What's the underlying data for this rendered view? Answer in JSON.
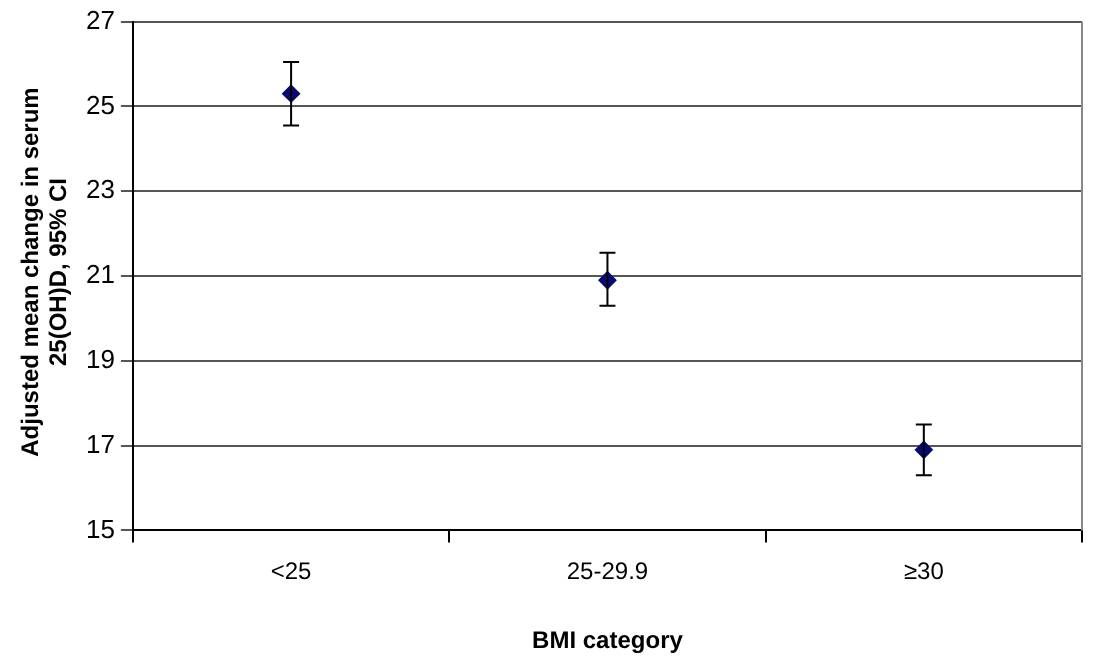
{
  "chart_data": {
    "type": "scatter",
    "xlabel": "BMI category",
    "ylabel": "Adjusted mean change in serum 25(OH)D, 95% CI",
    "categories": [
      "<25",
      "25-29.9",
      "≥30"
    ],
    "values": [
      25.3,
      20.9,
      16.9
    ],
    "errors": [
      [
        24.55,
        26.05
      ],
      [
        20.3,
        21.55
      ],
      [
        16.3,
        17.5
      ]
    ],
    "color": "#0a0a6e",
    "marker": "diamond",
    "ylim": [
      15,
      27
    ],
    "yticks": [
      15,
      17,
      19,
      21,
      23,
      25,
      27
    ],
    "grid": "y",
    "legend": false
  }
}
